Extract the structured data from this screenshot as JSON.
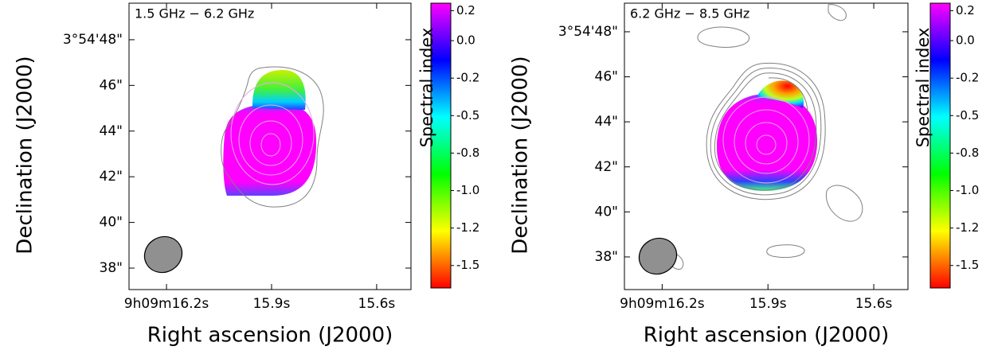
{
  "chart_data": [
    {
      "type": "image",
      "annotation": "1.5 GHz − 6.2 GHz",
      "x_label": "Right ascension (J2000)",
      "y_label": "Declination (J2000)",
      "xlim": [
        16.307,
        15.502
      ],
      "xticks": [
        {
          "value": 16.2,
          "label": "9h09m16.2s"
        },
        {
          "value": 15.9,
          "label": "15.9s"
        },
        {
          "value": 15.6,
          "label": "15.6s"
        }
      ],
      "ylim": [
        37.06,
        49.6
      ],
      "yticks": [
        {
          "value": 48,
          "label": "3°54'48\""
        },
        {
          "value": 46,
          "label": "46\""
        },
        {
          "value": 44,
          "label": "44\""
        },
        {
          "value": 42,
          "label": "42\""
        },
        {
          "value": 40,
          "label": "40\""
        },
        {
          "value": 38,
          "label": "38\""
        }
      ],
      "colorbar_label": "Spectral index",
      "clim": [
        -1.65,
        0.25
      ],
      "cticks": [
        0.2,
        {
          "value": 0.0,
          "label": "0.0"
        },
        {
          "value": -0.25,
          "label": "-0.2"
        },
        -0.5,
        {
          "value": -0.75,
          "label": "-0.8"
        },
        {
          "value": -1.0,
          "label": "-1.0"
        },
        {
          "value": -1.25,
          "label": "-1.2"
        },
        -1.5
      ],
      "colormap": [
        "#ff0000",
        "#ffff00",
        "#00ff00",
        "#00ffff",
        "#0000ff",
        "#ff00ff"
      ]
    },
    {
      "type": "image",
      "annotation": "6.2 GHz − 8.5 GHz",
      "x_label": "Right ascension (J2000)",
      "y_label": "Declination (J2000)",
      "xlim": [
        16.307,
        15.503
      ],
      "xticks": [
        {
          "value": 16.2,
          "label": "9h09m16.2s"
        },
        {
          "value": 15.9,
          "label": "15.9s"
        },
        {
          "value": 15.6,
          "label": "15.6s"
        }
      ],
      "ylim": [
        36.55,
        49.27
      ],
      "yticks": [
        {
          "value": 48,
          "label": "3°54'48\""
        },
        {
          "value": 46,
          "label": "46\""
        },
        {
          "value": 44,
          "label": "44\""
        },
        {
          "value": 42,
          "label": "42\""
        },
        {
          "value": 40,
          "label": "40\""
        },
        {
          "value": 38,
          "label": "38\""
        }
      ],
      "colorbar_label": "Spectral index",
      "clim": [
        -1.65,
        0.25
      ],
      "cticks": [
        0.2,
        {
          "value": 0.0,
          "label": "0.0"
        },
        {
          "value": -0.25,
          "label": "-0.2"
        },
        -0.5,
        {
          "value": -0.75,
          "label": "-0.8"
        },
        {
          "value": -1.0,
          "label": "-1.0"
        },
        {
          "value": -1.25,
          "label": "-1.2"
        },
        -1.5
      ],
      "colormap": [
        "#ff0000",
        "#ffff00",
        "#00ff00",
        "#00ffff",
        "#0000ff",
        "#ff00ff"
      ]
    }
  ]
}
